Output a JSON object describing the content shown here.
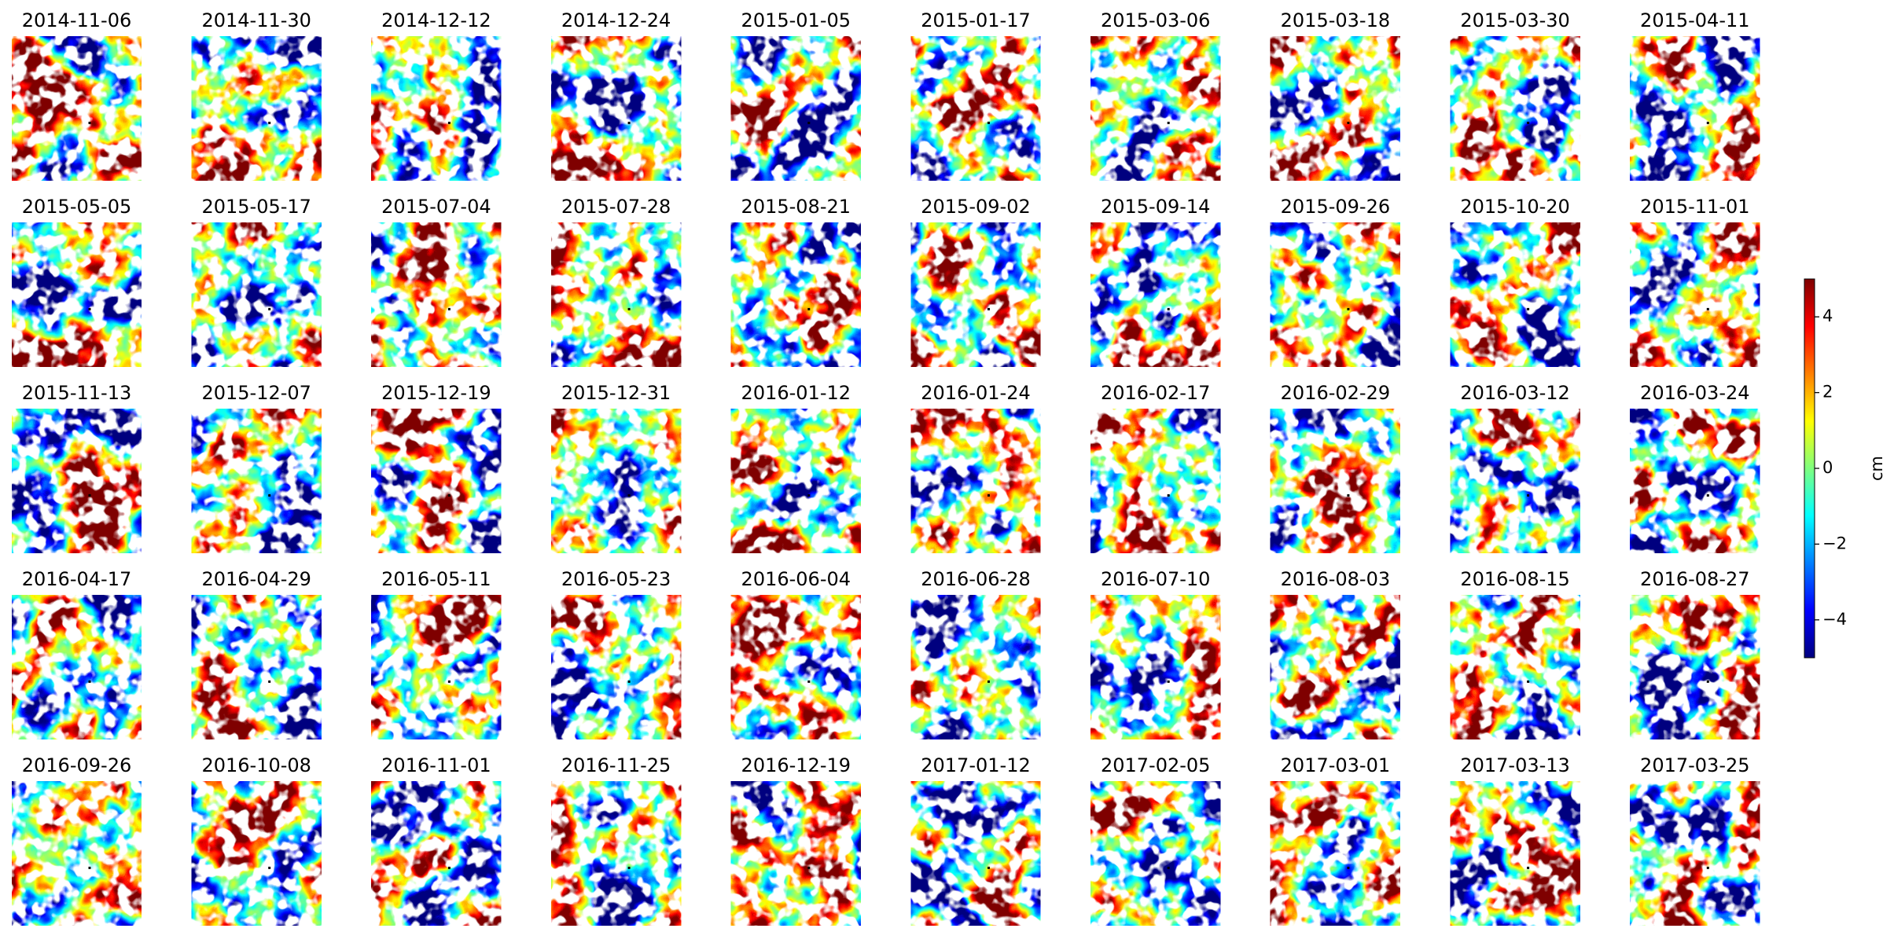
{
  "chart_data": {
    "type": "heatmap",
    "panels": [
      "2014-11-06",
      "2014-11-30",
      "2014-12-12",
      "2014-12-24",
      "2015-01-05",
      "2015-01-17",
      "2015-03-06",
      "2015-03-18",
      "2015-03-30",
      "2015-04-11",
      "2015-05-05",
      "2015-05-17",
      "2015-07-04",
      "2015-07-28",
      "2015-08-21",
      "2015-09-02",
      "2015-09-14",
      "2015-09-26",
      "2015-10-20",
      "2015-11-01",
      "2015-11-13",
      "2015-12-07",
      "2015-12-19",
      "2015-12-31",
      "2016-01-12",
      "2016-01-24",
      "2016-02-17",
      "2016-02-29",
      "2016-03-12",
      "2016-03-24",
      "2016-04-17",
      "2016-04-29",
      "2016-05-11",
      "2016-05-23",
      "2016-06-04",
      "2016-06-28",
      "2016-07-10",
      "2016-08-03",
      "2016-08-15",
      "2016-08-27",
      "2016-09-26",
      "2016-10-08",
      "2016-11-01",
      "2016-11-25",
      "2016-12-19",
      "2017-01-12",
      "2017-02-05",
      "2017-03-01",
      "2017-03-13",
      "2017-03-25"
    ],
    "colorbar": {
      "label": "cm",
      "colormap": "jet",
      "lim": [
        -5,
        5
      ],
      "ticks": [
        {
          "value": -4,
          "label": "−4"
        },
        {
          "value": -2,
          "label": "−2"
        },
        0,
        2,
        4
      ]
    }
  }
}
